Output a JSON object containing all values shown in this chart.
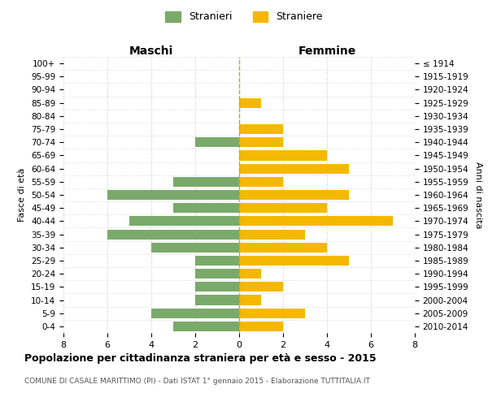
{
  "age_groups": [
    "100+",
    "95-99",
    "90-94",
    "85-89",
    "80-84",
    "75-79",
    "70-74",
    "65-69",
    "60-64",
    "55-59",
    "50-54",
    "45-49",
    "40-44",
    "35-39",
    "30-34",
    "25-29",
    "20-24",
    "15-19",
    "10-14",
    "5-9",
    "0-4"
  ],
  "birth_years": [
    "≤ 1914",
    "1915-1919",
    "1920-1924",
    "1925-1929",
    "1930-1934",
    "1935-1939",
    "1940-1944",
    "1945-1949",
    "1950-1954",
    "1955-1959",
    "1960-1964",
    "1965-1969",
    "1970-1974",
    "1975-1979",
    "1980-1984",
    "1985-1989",
    "1990-1994",
    "1995-1999",
    "2000-2004",
    "2005-2009",
    "2010-2014"
  ],
  "males": [
    0,
    0,
    0,
    0,
    0,
    0,
    2,
    0,
    0,
    3,
    6,
    3,
    5,
    6,
    4,
    2,
    2,
    2,
    2,
    4,
    3
  ],
  "females": [
    0,
    0,
    0,
    1,
    0,
    2,
    2,
    4,
    5,
    2,
    5,
    4,
    7,
    3,
    4,
    5,
    1,
    2,
    1,
    3,
    2
  ],
  "male_color": "#7aaa6a",
  "female_color": "#f5b800",
  "grid_color": "#cccccc",
  "center_line_color": "#aaa855",
  "title": "Popolazione per cittadinanza straniera per età e sesso - 2015",
  "subtitle": "COMUNE DI CASALE MARITTIMO (PI) - Dati ISTAT 1° gennaio 2015 - Elaborazione TUTTITALIA.IT",
  "xlabel_left": "Maschi",
  "xlabel_right": "Femmine",
  "ylabel_left": "Fasce di età",
  "ylabel_right": "Anni di nascita",
  "legend_male": "Stranieri",
  "legend_female": "Straniere",
  "xlim": 8,
  "background_color": "#ffffff"
}
